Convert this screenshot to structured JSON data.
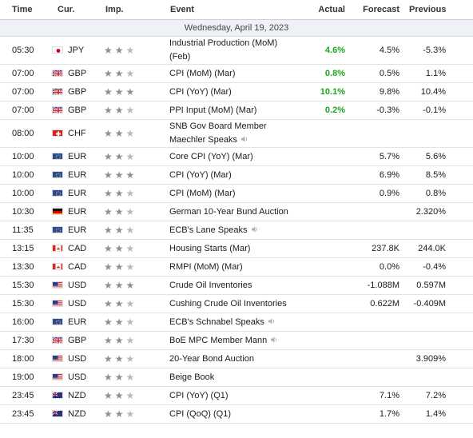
{
  "header": {
    "time": "Time",
    "currency": "Cur.",
    "importance": "Imp.",
    "event": "Event",
    "actual": "Actual",
    "forecast": "Forecast",
    "previous": "Previous"
  },
  "date_label": "Wednesday, April 19, 2023",
  "colors": {
    "actual_positive": "#1fa51f",
    "star_on": "#8e8e8e",
    "star_off": "#b8b8b8"
  },
  "rows": [
    {
      "time": "05:30",
      "currency": "JPY",
      "flag": "jp",
      "imp": 2,
      "event": "Industrial Production (MoM) (Feb)",
      "actual": "4.6%",
      "forecast": "4.5%",
      "previous": "-5.3%",
      "speech": false
    },
    {
      "time": "07:00",
      "currency": "GBP",
      "flag": "gb",
      "imp": 2,
      "event": "CPI (MoM) (Mar)",
      "actual": "0.8%",
      "forecast": "0.5%",
      "previous": "1.1%",
      "speech": false
    },
    {
      "time": "07:00",
      "currency": "GBP",
      "flag": "gb",
      "imp": 3,
      "event": "CPI (YoY) (Mar)",
      "actual": "10.1%",
      "forecast": "9.8%",
      "previous": "10.4%",
      "speech": false
    },
    {
      "time": "07:00",
      "currency": "GBP",
      "flag": "gb",
      "imp": 2,
      "event": "PPI Input (MoM) (Mar)",
      "actual": "0.2%",
      "forecast": "-0.3%",
      "previous": "-0.1%",
      "speech": false
    },
    {
      "time": "08:00",
      "currency": "CHF",
      "flag": "ch",
      "imp": 2,
      "event": "SNB Gov Board Member Maechler Speaks",
      "actual": "",
      "forecast": "",
      "previous": "",
      "speech": true
    },
    {
      "time": "10:00",
      "currency": "EUR",
      "flag": "eu",
      "imp": 2,
      "event": "Core CPI (YoY) (Mar)",
      "actual": "",
      "forecast": "5.7%",
      "previous": "5.6%",
      "speech": false
    },
    {
      "time": "10:00",
      "currency": "EUR",
      "flag": "eu",
      "imp": 3,
      "event": "CPI (YoY) (Mar)",
      "actual": "",
      "forecast": "6.9%",
      "previous": "8.5%",
      "speech": false
    },
    {
      "time": "10:00",
      "currency": "EUR",
      "flag": "eu",
      "imp": 2,
      "event": "CPI (MoM) (Mar)",
      "actual": "",
      "forecast": "0.9%",
      "previous": "0.8%",
      "speech": false
    },
    {
      "time": "10:30",
      "currency": "EUR",
      "flag": "de",
      "imp": 2,
      "event": "German 10-Year Bund Auction",
      "actual": "",
      "forecast": "",
      "previous": "2.320%",
      "speech": false
    },
    {
      "time": "11:35",
      "currency": "EUR",
      "flag": "eu",
      "imp": 2,
      "event": "ECB's Lane Speaks",
      "actual": "",
      "forecast": "",
      "previous": "",
      "speech": true
    },
    {
      "time": "13:15",
      "currency": "CAD",
      "flag": "ca",
      "imp": 2,
      "event": "Housing Starts (Mar)",
      "actual": "",
      "forecast": "237.8K",
      "previous": "244.0K",
      "speech": false
    },
    {
      "time": "13:30",
      "currency": "CAD",
      "flag": "ca",
      "imp": 2,
      "event": "RMPI (MoM) (Mar)",
      "actual": "",
      "forecast": "0.0%",
      "previous": "-0.4%",
      "speech": false
    },
    {
      "time": "15:30",
      "currency": "USD",
      "flag": "us",
      "imp": 3,
      "event": "Crude Oil Inventories",
      "actual": "",
      "forecast": "-1.088M",
      "previous": "0.597M",
      "speech": false
    },
    {
      "time": "15:30",
      "currency": "USD",
      "flag": "us",
      "imp": 2,
      "event": "Cushing Crude Oil Inventories",
      "actual": "",
      "forecast": "0.622M",
      "previous": "-0.409M",
      "speech": false
    },
    {
      "time": "16:00",
      "currency": "EUR",
      "flag": "eu",
      "imp": 2,
      "event": "ECB's Schnabel Speaks",
      "actual": "",
      "forecast": "",
      "previous": "",
      "speech": true
    },
    {
      "time": "17:30",
      "currency": "GBP",
      "flag": "gb",
      "imp": 2,
      "event": "BoE MPC Member Mann",
      "actual": "",
      "forecast": "",
      "previous": "",
      "speech": true
    },
    {
      "time": "18:00",
      "currency": "USD",
      "flag": "us",
      "imp": 2,
      "event": "20-Year Bond Auction",
      "actual": "",
      "forecast": "",
      "previous": "3.909%",
      "speech": false
    },
    {
      "time": "19:00",
      "currency": "USD",
      "flag": "us",
      "imp": 2,
      "event": "Beige Book",
      "actual": "",
      "forecast": "",
      "previous": "",
      "speech": false
    },
    {
      "time": "23:45",
      "currency": "NZD",
      "flag": "nz",
      "imp": 2,
      "event": "CPI (YoY) (Q1)",
      "actual": "",
      "forecast": "7.1%",
      "previous": "7.2%",
      "speech": false
    },
    {
      "time": "23:45",
      "currency": "NZD",
      "flag": "nz",
      "imp": 2,
      "event": "CPI (QoQ) (Q1)",
      "actual": "",
      "forecast": "1.7%",
      "previous": "1.4%",
      "speech": false
    }
  ]
}
